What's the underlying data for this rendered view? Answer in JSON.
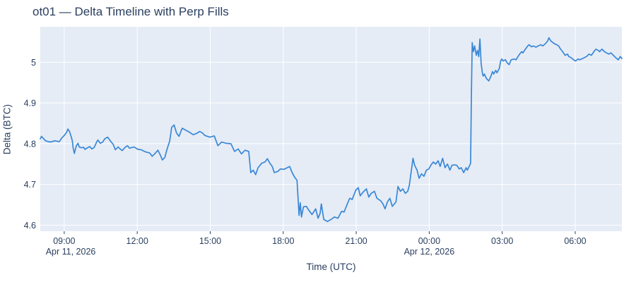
{
  "chart_data": {
    "type": "line",
    "title": "ot01 — Delta Timeline with Perp Fills",
    "xlabel": "Time (UTC)",
    "ylabel": "Delta (BTC)",
    "legend": "none",
    "grid": true,
    "colors": {
      "line": "#3a87d6",
      "plot_bg": "#e5ecf6",
      "grid": "#ffffff",
      "text": "#2a3f5f",
      "tick_mark": "#2a3f5f"
    },
    "x_range_minutes": [
      481,
      1915
    ],
    "y_range": [
      4.585,
      5.087
    ],
    "y_ticks": [
      {
        "v": 4.6,
        "label": "4.6"
      },
      {
        "v": 4.7,
        "label": "4.7"
      },
      {
        "v": 4.8,
        "label": "4.8"
      },
      {
        "v": 4.9,
        "label": "4.9"
      },
      {
        "v": 5.0,
        "label": "5"
      }
    ],
    "x_ticks": [
      {
        "t": 540,
        "label": "09:00"
      },
      {
        "t": 720,
        "label": "12:00"
      },
      {
        "t": 900,
        "label": "15:00"
      },
      {
        "t": 1080,
        "label": "18:00"
      },
      {
        "t": 1260,
        "label": "21:00"
      },
      {
        "t": 1440,
        "label": "00:00"
      },
      {
        "t": 1620,
        "label": "03:00"
      },
      {
        "t": 1800,
        "label": "06:00"
      }
    ],
    "x_date_labels": [
      {
        "t": 556,
        "label": "Apr 11, 2026"
      },
      {
        "t": 1440,
        "label": "Apr 12, 2026"
      }
    ],
    "series": [
      {
        "name": "delta",
        "points": [
          [
            481,
            4.812
          ],
          [
            484,
            4.818
          ],
          [
            494,
            4.807
          ],
          [
            505,
            4.804
          ],
          [
            517,
            4.807
          ],
          [
            528,
            4.805
          ],
          [
            534,
            4.814
          ],
          [
            540,
            4.82
          ],
          [
            546,
            4.828
          ],
          [
            549,
            4.836
          ],
          [
            553,
            4.83
          ],
          [
            557,
            4.818
          ],
          [
            560,
            4.807
          ],
          [
            562,
            4.79
          ],
          [
            565,
            4.776
          ],
          [
            570,
            4.795
          ],
          [
            574,
            4.801
          ],
          [
            577,
            4.792
          ],
          [
            582,
            4.79
          ],
          [
            588,
            4.791
          ],
          [
            591,
            4.786
          ],
          [
            596,
            4.789
          ],
          [
            603,
            4.793
          ],
          [
            608,
            4.787
          ],
          [
            614,
            4.791
          ],
          [
            620,
            4.804
          ],
          [
            623,
            4.809
          ],
          [
            629,
            4.801
          ],
          [
            635,
            4.804
          ],
          [
            640,
            4.812
          ],
          [
            647,
            4.816
          ],
          [
            650,
            4.812
          ],
          [
            656,
            4.804
          ],
          [
            661,
            4.798
          ],
          [
            666,
            4.785
          ],
          [
            673,
            4.792
          ],
          [
            678,
            4.787
          ],
          [
            683,
            4.783
          ],
          [
            690,
            4.791
          ],
          [
            696,
            4.795
          ],
          [
            701,
            4.789
          ],
          [
            712,
            4.792
          ],
          [
            722,
            4.786
          ],
          [
            730,
            4.785
          ],
          [
            740,
            4.78
          ],
          [
            751,
            4.777
          ],
          [
            757,
            4.769
          ],
          [
            764,
            4.776
          ],
          [
            771,
            4.784
          ],
          [
            777,
            4.772
          ],
          [
            782,
            4.76
          ],
          [
            788,
            4.766
          ],
          [
            794,
            4.788
          ],
          [
            800,
            4.806
          ],
          [
            805,
            4.84
          ],
          [
            811,
            4.846
          ],
          [
            817,
            4.826
          ],
          [
            823,
            4.818
          ],
          [
            831,
            4.838
          ],
          [
            840,
            4.833
          ],
          [
            849,
            4.828
          ],
          [
            858,
            4.822
          ],
          [
            866,
            4.825
          ],
          [
            874,
            4.83
          ],
          [
            880,
            4.827
          ],
          [
            887,
            4.82
          ],
          [
            899,
            4.816
          ],
          [
            910,
            4.819
          ],
          [
            919,
            4.795
          ],
          [
            928,
            4.804
          ],
          [
            939,
            4.801
          ],
          [
            951,
            4.8
          ],
          [
            960,
            4.781
          ],
          [
            969,
            4.787
          ],
          [
            977,
            4.775
          ],
          [
            986,
            4.784
          ],
          [
            995,
            4.781
          ],
          [
            1000,
            4.729
          ],
          [
            1006,
            4.735
          ],
          [
            1012,
            4.724
          ],
          [
            1018,
            4.741
          ],
          [
            1027,
            4.752
          ],
          [
            1035,
            4.755
          ],
          [
            1041,
            4.763
          ],
          [
            1047,
            4.752
          ],
          [
            1053,
            4.744
          ],
          [
            1058,
            4.729
          ],
          [
            1067,
            4.732
          ],
          [
            1073,
            4.738
          ],
          [
            1082,
            4.737
          ],
          [
            1090,
            4.741
          ],
          [
            1096,
            4.744
          ],
          [
            1102,
            4.729
          ],
          [
            1108,
            4.718
          ],
          [
            1114,
            4.71
          ],
          [
            1117,
            4.66
          ],
          [
            1119,
            4.624
          ],
          [
            1122,
            4.655
          ],
          [
            1125,
            4.62
          ],
          [
            1130,
            4.645
          ],
          [
            1137,
            4.646
          ],
          [
            1145,
            4.634
          ],
          [
            1151,
            4.626
          ],
          [
            1160,
            4.64
          ],
          [
            1166,
            4.617
          ],
          [
            1171,
            4.629
          ],
          [
            1174,
            4.652
          ],
          [
            1180,
            4.614
          ],
          [
            1189,
            4.609
          ],
          [
            1198,
            4.614
          ],
          [
            1206,
            4.62
          ],
          [
            1215,
            4.617
          ],
          [
            1224,
            4.634
          ],
          [
            1230,
            4.632
          ],
          [
            1238,
            4.652
          ],
          [
            1244,
            4.666
          ],
          [
            1250,
            4.663
          ],
          [
            1259,
            4.686
          ],
          [
            1265,
            4.692
          ],
          [
            1270,
            4.672
          ],
          [
            1276,
            4.68
          ],
          [
            1285,
            4.689
          ],
          [
            1291,
            4.669
          ],
          [
            1297,
            4.678
          ],
          [
            1305,
            4.683
          ],
          [
            1311,
            4.666
          ],
          [
            1320,
            4.66
          ],
          [
            1326,
            4.652
          ],
          [
            1331,
            4.64
          ],
          [
            1337,
            4.657
          ],
          [
            1343,
            4.666
          ],
          [
            1349,
            4.646
          ],
          [
            1358,
            4.657
          ],
          [
            1363,
            4.695
          ],
          [
            1369,
            4.683
          ],
          [
            1375,
            4.689
          ],
          [
            1381,
            4.678
          ],
          [
            1387,
            4.683
          ],
          [
            1391,
            4.698
          ],
          [
            1400,
            4.764
          ],
          [
            1404,
            4.747
          ],
          [
            1410,
            4.735
          ],
          [
            1415,
            4.715
          ],
          [
            1421,
            4.726
          ],
          [
            1427,
            4.72
          ],
          [
            1433,
            4.735
          ],
          [
            1439,
            4.738
          ],
          [
            1444,
            4.747
          ],
          [
            1450,
            4.755
          ],
          [
            1456,
            4.75
          ],
          [
            1462,
            4.758
          ],
          [
            1467,
            4.744
          ],
          [
            1473,
            4.764
          ],
          [
            1479,
            4.741
          ],
          [
            1485,
            4.75
          ],
          [
            1491,
            4.735
          ],
          [
            1496,
            4.747
          ],
          [
            1502,
            4.748
          ],
          [
            1508,
            4.747
          ],
          [
            1514,
            4.738
          ],
          [
            1519,
            4.741
          ],
          [
            1525,
            4.729
          ],
          [
            1531,
            4.741
          ],
          [
            1534,
            4.735
          ],
          [
            1540,
            4.747
          ],
          [
            1542,
            4.752
          ],
          [
            1544,
            4.921
          ],
          [
            1546,
            5.048
          ],
          [
            1549,
            5.026
          ],
          [
            1552,
            5.04
          ],
          [
            1556,
            5.017
          ],
          [
            1559,
            5.029
          ],
          [
            1562,
            5.014
          ],
          [
            1565,
            5.057
          ],
          [
            1568,
            4.997
          ],
          [
            1571,
            4.974
          ],
          [
            1573,
            4.966
          ],
          [
            1576,
            4.971
          ],
          [
            1581,
            4.96
          ],
          [
            1587,
            4.954
          ],
          [
            1593,
            4.968
          ],
          [
            1596,
            4.977
          ],
          [
            1599,
            4.971
          ],
          [
            1604,
            4.98
          ],
          [
            1607,
            4.974
          ],
          [
            1613,
            4.985
          ],
          [
            1616,
            5.003
          ],
          [
            1619,
            5.008
          ],
          [
            1622,
            5.003
          ],
          [
            1628,
            5.006
          ],
          [
            1631,
            5.0
          ],
          [
            1637,
            4.994
          ],
          [
            1642,
            5.006
          ],
          [
            1649,
            5.008
          ],
          [
            1654,
            5.006
          ],
          [
            1657,
            5.011
          ],
          [
            1663,
            5.02
          ],
          [
            1668,
            5.026
          ],
          [
            1671,
            5.023
          ],
          [
            1677,
            5.032
          ],
          [
            1683,
            5.04
          ],
          [
            1686,
            5.043
          ],
          [
            1692,
            5.038
          ],
          [
            1697,
            5.04
          ],
          [
            1703,
            5.037
          ],
          [
            1709,
            5.04
          ],
          [
            1715,
            5.043
          ],
          [
            1720,
            5.04
          ],
          [
            1726,
            5.045
          ],
          [
            1732,
            5.052
          ],
          [
            1735,
            5.06
          ],
          [
            1740,
            5.052
          ],
          [
            1748,
            5.046
          ],
          [
            1754,
            5.043
          ],
          [
            1759,
            5.04
          ],
          [
            1764,
            5.032
          ],
          [
            1769,
            5.026
          ],
          [
            1775,
            5.017
          ],
          [
            1781,
            5.02
          ],
          [
            1784,
            5.014
          ],
          [
            1790,
            5.011
          ],
          [
            1796,
            5.006
          ],
          [
            1801,
            5.003
          ],
          [
            1807,
            5.008
          ],
          [
            1810,
            5.006
          ],
          [
            1816,
            5.008
          ],
          [
            1822,
            5.011
          ],
          [
            1828,
            5.014
          ],
          [
            1834,
            5.02
          ],
          [
            1840,
            5.017
          ],
          [
            1846,
            5.026
          ],
          [
            1851,
            5.032
          ],
          [
            1857,
            5.029
          ],
          [
            1860,
            5.026
          ],
          [
            1866,
            5.032
          ],
          [
            1872,
            5.026
          ],
          [
            1877,
            5.023
          ],
          [
            1883,
            5.02
          ],
          [
            1888,
            5.023
          ],
          [
            1894,
            5.017
          ],
          [
            1900,
            5.011
          ],
          [
            1906,
            5.006
          ],
          [
            1911,
            5.014
          ],
          [
            1915,
            5.009
          ]
        ]
      }
    ]
  }
}
